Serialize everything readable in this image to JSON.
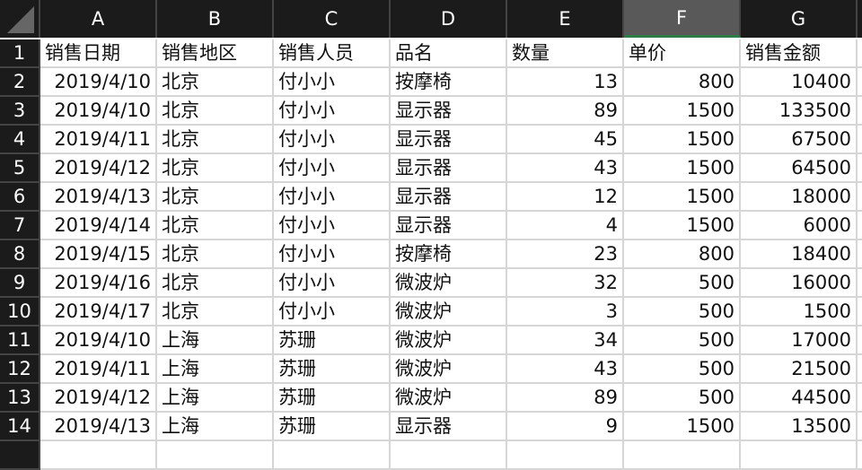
{
  "columns": [
    "A",
    "B",
    "C",
    "D",
    "E",
    "F",
    "G",
    ""
  ],
  "selected_column": "F",
  "headers": [
    "销售日期",
    "销售地区",
    "销售人员",
    "品名",
    "数量",
    "单价",
    "销售金额"
  ],
  "rows": [
    [
      "2019/4/10",
      "北京",
      "付小小",
      "按摩椅",
      "13",
      "800",
      "10400"
    ],
    [
      "2019/4/10",
      "北京",
      "付小小",
      "显示器",
      "89",
      "1500",
      "133500"
    ],
    [
      "2019/4/11",
      "北京",
      "付小小",
      "显示器",
      "45",
      "1500",
      "67500"
    ],
    [
      "2019/4/12",
      "北京",
      "付小小",
      "显示器",
      "43",
      "1500",
      "64500"
    ],
    [
      "2019/4/13",
      "北京",
      "付小小",
      "显示器",
      "12",
      "1500",
      "18000"
    ],
    [
      "2019/4/14",
      "北京",
      "付小小",
      "显示器",
      "4",
      "1500",
      "6000"
    ],
    [
      "2019/4/15",
      "北京",
      "付小小",
      "按摩椅",
      "23",
      "800",
      "18400"
    ],
    [
      "2019/4/16",
      "北京",
      "付小小",
      "微波炉",
      "32",
      "500",
      "16000"
    ],
    [
      "2019/4/17",
      "北京",
      "付小小",
      "微波炉",
      "3",
      "500",
      "1500"
    ],
    [
      "2019/4/10",
      "上海",
      "苏珊",
      "微波炉",
      "34",
      "500",
      "17000"
    ],
    [
      "2019/4/11",
      "上海",
      "苏珊",
      "微波炉",
      "43",
      "500",
      "21500"
    ],
    [
      "2019/4/12",
      "上海",
      "苏珊",
      "微波炉",
      "89",
      "500",
      "44500"
    ],
    [
      "2019/4/13",
      "上海",
      "苏珊",
      "显示器",
      "9",
      "1500",
      "13500"
    ]
  ],
  "row_numbers": [
    "1",
    "2",
    "3",
    "4",
    "5",
    "6",
    "7",
    "8",
    "9",
    "10",
    "11",
    "12",
    "13",
    "14"
  ],
  "colors": {
    "header_bg": "#1b1b1b",
    "selected_header_bg": "#595959",
    "selected_accent": "#2f7d46",
    "gridline": "#d6d6d6"
  }
}
